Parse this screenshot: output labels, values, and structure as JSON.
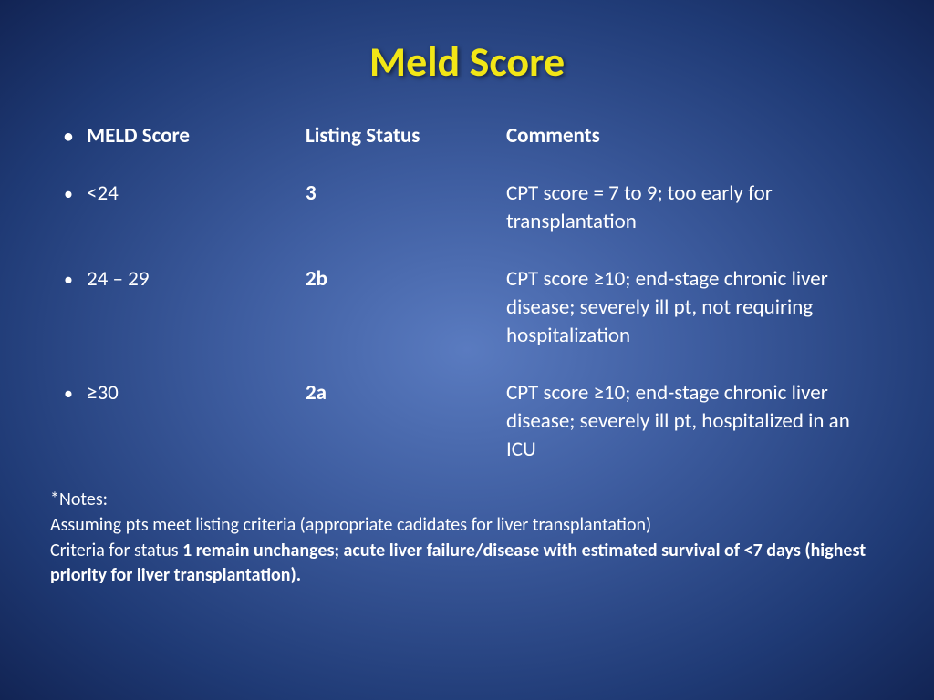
{
  "slide": {
    "title": "Meld Score",
    "title_color": "#f2e616",
    "text_color": "#ffffff",
    "bg_center": "#5a7bc0",
    "bg_edge": "#122454",
    "title_fontsize": 46,
    "body_fontsize": 23,
    "notes_fontsize": 20
  },
  "table": {
    "headers": {
      "score": "MELD Score",
      "status": "Listing Status",
      "comments": "Comments"
    },
    "rows": [
      {
        "score": "<24",
        "status": "3",
        "comments": "CPT score = 7 to 9; too early for transplantation"
      },
      {
        "score": "24 – 29",
        "status": "2b",
        "comments": "CPT score ≥10; end-stage chronic liver disease; severely ill pt, not requiring hospitalization"
      },
      {
        "score": "≥30",
        "status": "2a",
        "comments": "CPT score ≥10; end-stage chronic liver disease; severely ill pt, hospitalized in an ICU"
      }
    ]
  },
  "notes": {
    "line1": "*Notes:",
    "line2": "Assuming pts meet listing criteria (appropriate cadidates for liver transplantation)",
    "line3_prefix": "Criteria for status ",
    "line3_bold": "1 remain unchanges; acute liver failure/disease with estimated survival of <7 days (highest priority for liver transplantation)."
  }
}
